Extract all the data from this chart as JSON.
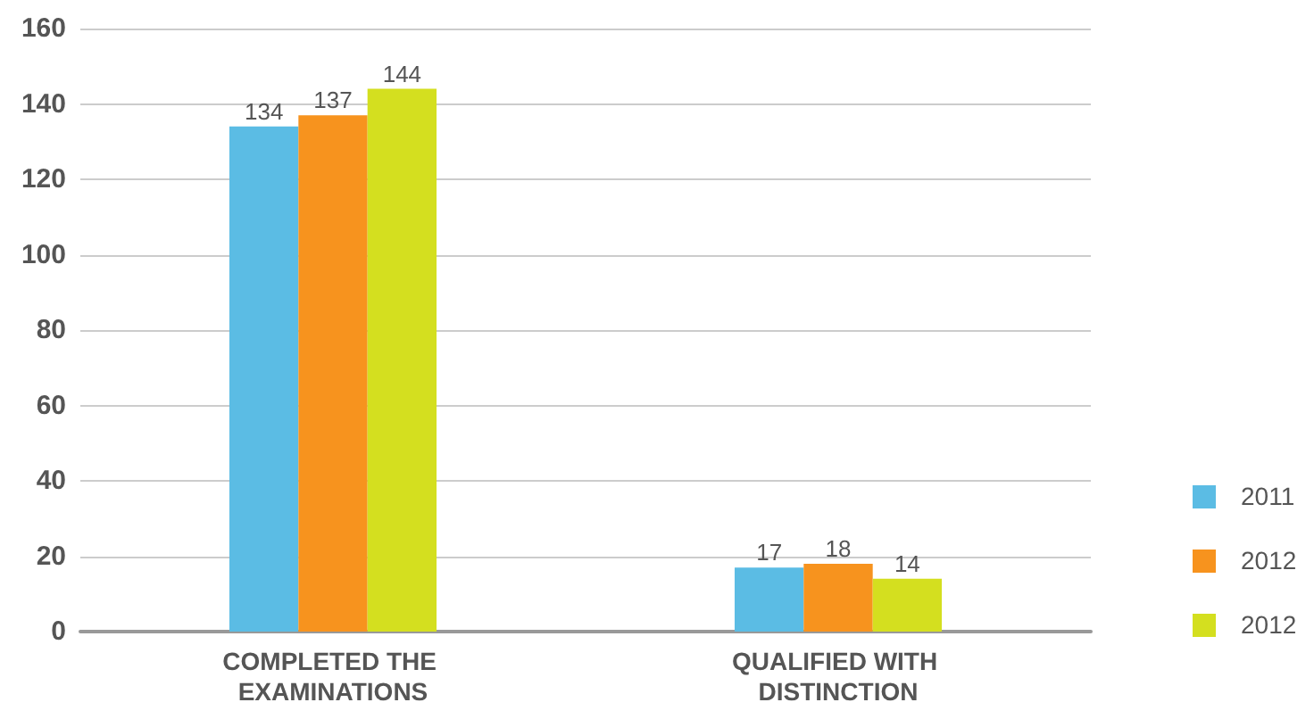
{
  "chart_data": {
    "type": "bar",
    "categories": [
      "COMPLETED THE EXAMINATIONS",
      "QUALIFIED WITH DISTINCTION"
    ],
    "series": [
      {
        "name": "2011",
        "color": "#5bbce4",
        "values": [
          134,
          17
        ]
      },
      {
        "name": "2012",
        "color": "#f7931e",
        "values": [
          137,
          18
        ]
      },
      {
        "name": "2012",
        "color": "#d4df1f",
        "values": [
          144,
          14
        ]
      }
    ],
    "ylim": [
      0,
      160
    ],
    "yticks": [
      0,
      20,
      40,
      60,
      80,
      100,
      120,
      140,
      160
    ],
    "grid": "y",
    "legend": "bottom right",
    "data_labels": true
  }
}
